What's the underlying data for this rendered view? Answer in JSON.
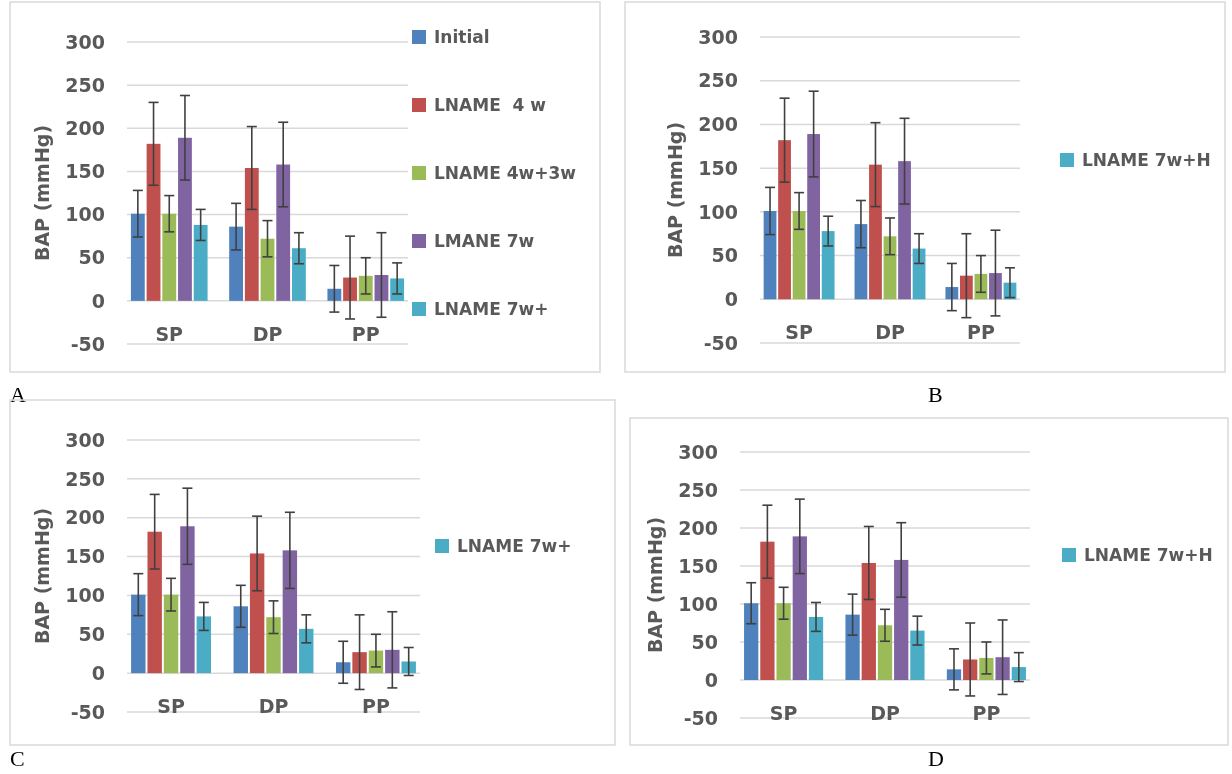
{
  "chart_data": [
    {
      "type": "bar",
      "annotations": [
        "A"
      ],
      "ylabel": "BAP (mmHg)",
      "categories": [
        "SP",
        "DP",
        "PP"
      ],
      "ylim": [
        -50,
        300
      ],
      "yticks": [
        -50,
        0,
        50,
        100,
        150,
        200,
        250,
        300
      ],
      "grid": "y",
      "legend": "right",
      "series": [
        {
          "name": "Initial",
          "color": "#4f81bd",
          "values": [
            101,
            86,
            14
          ],
          "errors": [
            27,
            27,
            27
          ]
        },
        {
          "name": "LNAME  4 w",
          "color": "#c0504d",
          "values": [
            182,
            154,
            27
          ],
          "errors": [
            48,
            48,
            48
          ]
        },
        {
          "name": "LNAME 4w+3w",
          "color": "#9bbb59",
          "values": [
            101,
            72,
            29
          ],
          "errors": [
            21,
            21,
            21
          ]
        },
        {
          "name": "LMANE 7w",
          "color": "#8064a2",
          "values": [
            189,
            158,
            30
          ],
          "errors": [
            49,
            49,
            49
          ]
        },
        {
          "name": "LNAME 7w+",
          "color": "#4bacc6",
          "values": [
            88,
            61,
            26
          ],
          "errors": [
            18,
            18,
            18
          ]
        }
      ]
    },
    {
      "type": "bar",
      "annotations": [
        "B"
      ],
      "ylabel": "BAP (mmHg)",
      "categories": [
        "SP",
        "DP",
        "PP"
      ],
      "ylim": [
        -50,
        300
      ],
      "yticks": [
        -50,
        0,
        50,
        100,
        150,
        200,
        250,
        300
      ],
      "grid": "y",
      "legend": "right",
      "series": [
        {
          "color": "#4f81bd",
          "values": [
            101,
            86,
            14
          ],
          "errors": [
            27,
            27,
            27
          ]
        },
        {
          "color": "#c0504d",
          "values": [
            182,
            154,
            27
          ],
          "errors": [
            48,
            48,
            48
          ]
        },
        {
          "color": "#9bbb59",
          "values": [
            101,
            72,
            29
          ],
          "errors": [
            21,
            21,
            21
          ]
        },
        {
          "color": "#8064a2",
          "values": [
            189,
            158,
            30
          ],
          "errors": [
            49,
            49,
            49
          ]
        },
        {
          "name": "LNAME 7w+H",
          "color": "#4bacc6",
          "values": [
            78,
            58,
            19
          ],
          "errors": [
            17,
            17,
            17
          ]
        }
      ]
    },
    {
      "type": "bar",
      "annotations": [
        "C"
      ],
      "ylabel": "BAP (mmHg)",
      "categories": [
        "SP",
        "DP",
        "PP"
      ],
      "ylim": [
        -50,
        300
      ],
      "yticks": [
        -50,
        0,
        50,
        100,
        150,
        200,
        250,
        300
      ],
      "grid": "y",
      "legend": "right",
      "series": [
        {
          "color": "#4f81bd",
          "values": [
            101,
            86,
            14
          ],
          "errors": [
            27,
            27,
            27
          ]
        },
        {
          "color": "#c0504d",
          "values": [
            182,
            154,
            27
          ],
          "errors": [
            48,
            48,
            48
          ]
        },
        {
          "color": "#9bbb59",
          "values": [
            101,
            72,
            29
          ],
          "errors": [
            21,
            21,
            21
          ]
        },
        {
          "color": "#8064a2",
          "values": [
            189,
            158,
            30
          ],
          "errors": [
            49,
            49,
            49
          ]
        },
        {
          "name": "LNAME 7w+",
          "color": "#4bacc6",
          "values": [
            73,
            57,
            15
          ],
          "errors": [
            18,
            18,
            18
          ]
        }
      ]
    },
    {
      "type": "bar",
      "annotations": [
        "D"
      ],
      "ylabel": "BAP (mmHg)",
      "categories": [
        "SP",
        "DP",
        "PP"
      ],
      "ylim": [
        -50,
        300
      ],
      "yticks": [
        -50,
        0,
        50,
        100,
        150,
        200,
        250,
        300
      ],
      "grid": "y",
      "legend": "right",
      "series": [
        {
          "color": "#4f81bd",
          "values": [
            101,
            86,
            14
          ],
          "errors": [
            27,
            27,
            27
          ]
        },
        {
          "color": "#c0504d",
          "values": [
            182,
            154,
            27
          ],
          "errors": [
            48,
            48,
            48
          ]
        },
        {
          "color": "#9bbb59",
          "values": [
            101,
            72,
            29
          ],
          "errors": [
            21,
            21,
            21
          ]
        },
        {
          "color": "#8064a2",
          "values": [
            189,
            158,
            30
          ],
          "errors": [
            49,
            49,
            49
          ]
        },
        {
          "name": "LNAME 7w+H",
          "color": "#4bacc6",
          "values": [
            83,
            65,
            17
          ],
          "errors": [
            19,
            19,
            19
          ]
        }
      ]
    }
  ]
}
